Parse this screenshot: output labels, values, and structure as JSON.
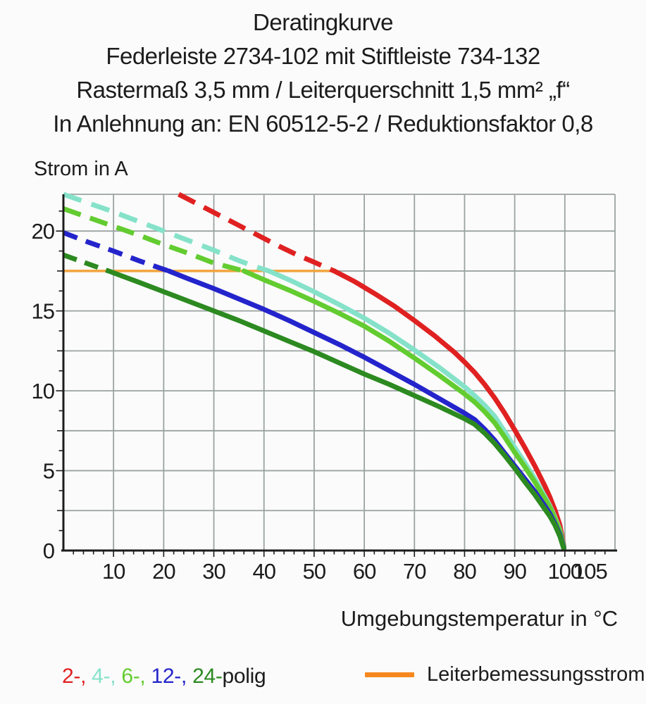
{
  "title": {
    "line1": "Deratingkurve",
    "line2": "Federleiste 2734-102 mit Stiftleiste 734-132",
    "line3": "Rastermaß 3,5 mm / Leiterquerschnitt 1,5 mm² „f“",
    "line4": "In Anlehnung an: EN 60512-5-2 / Reduktionsfaktor 0,8"
  },
  "chart_data": {
    "type": "line",
    "ylabel": "Strom in A",
    "xlabel": "Umgebungstemperatur in °C",
    "xlim": [
      0,
      110
    ],
    "ylim": [
      0,
      22.3
    ],
    "x_gridlines": [
      10,
      20,
      30,
      40,
      50,
      60,
      70,
      80,
      90,
      100
    ],
    "y_gridlines": [
      2.5,
      5,
      7.5,
      10,
      12.5,
      15,
      17.5,
      20
    ],
    "x_tick_labels": [
      10,
      20,
      30,
      40,
      50,
      60,
      70,
      80,
      90,
      100,
      105
    ],
    "y_tick_labels": [
      0,
      5,
      10,
      15,
      20
    ],
    "x_minor_step": 2,
    "y_minor_step": 1.25,
    "grid_color": "#9aa3a1",
    "axis_color": "#1c1c1c",
    "reference_line": {
      "label": "Leiterbemessungsstrom",
      "value": 17.5,
      "x_start": 0,
      "x_end": 54.5,
      "color": "#f2a43c"
    },
    "series": [
      {
        "name": "2-polig",
        "color": "#e02121",
        "dash_pattern": "26 14",
        "dashed_points": [
          [
            23,
            22.3
          ],
          [
            27,
            21.65
          ],
          [
            31,
            21.0
          ],
          [
            35,
            20.35
          ],
          [
            39,
            19.7
          ],
          [
            43,
            19.05
          ],
          [
            47,
            18.45
          ],
          [
            50,
            18.05
          ],
          [
            54,
            17.5
          ]
        ],
        "solid_points": [
          [
            54,
            17.5
          ],
          [
            58,
            16.85
          ],
          [
            62,
            16.1
          ],
          [
            66,
            15.3
          ],
          [
            70,
            14.4
          ],
          [
            74,
            13.45
          ],
          [
            78,
            12.4
          ],
          [
            80,
            11.8
          ],
          [
            82,
            11.15
          ],
          [
            84,
            10.4
          ],
          [
            86,
            9.55
          ],
          [
            88,
            8.6
          ],
          [
            90,
            7.55
          ],
          [
            92,
            6.45
          ],
          [
            94,
            5.3
          ],
          [
            96,
            4.05
          ],
          [
            97,
            3.35
          ],
          [
            98,
            2.55
          ],
          [
            99,
            1.6
          ],
          [
            99.8,
            0.3
          ]
        ]
      },
      {
        "name": "4-polig",
        "color": "#85e2c9",
        "dash_pattern": "27 15",
        "dashed_points": [
          [
            0,
            22.3
          ],
          [
            5,
            21.75
          ],
          [
            10,
            21.2
          ],
          [
            15,
            20.6
          ],
          [
            20,
            20.0
          ],
          [
            25,
            19.4
          ],
          [
            30,
            18.8
          ],
          [
            35,
            18.15
          ],
          [
            38,
            17.8
          ],
          [
            41,
            17.5
          ]
        ],
        "solid_points": [
          [
            41,
            17.5
          ],
          [
            45,
            16.95
          ],
          [
            50,
            16.2
          ],
          [
            55,
            15.4
          ],
          [
            60,
            14.55
          ],
          [
            65,
            13.6
          ],
          [
            70,
            12.55
          ],
          [
            75,
            11.45
          ],
          [
            80,
            10.25
          ],
          [
            82,
            9.7
          ],
          [
            84,
            9.1
          ],
          [
            86,
            8.4
          ],
          [
            88,
            7.45
          ],
          [
            90,
            6.45
          ],
          [
            92,
            5.5
          ],
          [
            94,
            4.5
          ],
          [
            96,
            3.4
          ],
          [
            97,
            2.8
          ],
          [
            98,
            2.1
          ],
          [
            99,
            1.3
          ],
          [
            99.8,
            0.25
          ]
        ]
      },
      {
        "name": "6-polig",
        "color": "#63cc30",
        "dash_pattern": "26 14",
        "dashed_points": [
          [
            0,
            21.4
          ],
          [
            5,
            20.85
          ],
          [
            10,
            20.3
          ],
          [
            15,
            19.75
          ],
          [
            20,
            19.15
          ],
          [
            25,
            18.6
          ],
          [
            30,
            18.0
          ],
          [
            33,
            17.75
          ],
          [
            36,
            17.5
          ]
        ],
        "solid_points": [
          [
            36,
            17.5
          ],
          [
            40,
            16.95
          ],
          [
            45,
            16.3
          ],
          [
            50,
            15.6
          ],
          [
            55,
            14.85
          ],
          [
            60,
            14.05
          ],
          [
            65,
            13.1
          ],
          [
            70,
            12.05
          ],
          [
            75,
            10.95
          ],
          [
            80,
            9.8
          ],
          [
            82,
            9.3
          ],
          [
            84,
            8.7
          ],
          [
            86,
            8.0
          ],
          [
            88,
            7.1
          ],
          [
            90,
            6.15
          ],
          [
            92,
            5.25
          ],
          [
            94,
            4.3
          ],
          [
            96,
            3.25
          ],
          [
            97,
            2.7
          ],
          [
            98,
            2.0
          ],
          [
            99,
            1.25
          ],
          [
            99.8,
            0.2
          ]
        ]
      },
      {
        "name": "12-polig",
        "color": "#2424cc",
        "dash_pattern": "21 13",
        "dashed_points": [
          [
            0,
            19.9
          ],
          [
            5,
            19.3
          ],
          [
            10,
            18.75
          ],
          [
            15,
            18.15
          ],
          [
            20,
            17.6
          ],
          [
            21,
            17.5
          ]
        ],
        "solid_points": [
          [
            21,
            17.5
          ],
          [
            25,
            17.0
          ],
          [
            30,
            16.4
          ],
          [
            35,
            15.75
          ],
          [
            40,
            15.1
          ],
          [
            45,
            14.4
          ],
          [
            50,
            13.65
          ],
          [
            55,
            12.9
          ],
          [
            60,
            12.1
          ],
          [
            65,
            11.25
          ],
          [
            70,
            10.4
          ],
          [
            75,
            9.5
          ],
          [
            80,
            8.6
          ],
          [
            82,
            8.2
          ],
          [
            84,
            7.6
          ],
          [
            86,
            6.9
          ],
          [
            88,
            6.1
          ],
          [
            90,
            5.3
          ],
          [
            92,
            4.5
          ],
          [
            94,
            3.7
          ],
          [
            96,
            2.8
          ],
          [
            97,
            2.3
          ],
          [
            98,
            1.7
          ],
          [
            99,
            1.0
          ],
          [
            99.8,
            0.15
          ]
        ]
      },
      {
        "name": "24-polig",
        "color": "#2c8a20",
        "dash_pattern": "20 12",
        "dashed_points": [
          [
            0,
            18.5
          ],
          [
            4,
            18.05
          ],
          [
            8,
            17.6
          ],
          [
            9,
            17.5
          ]
        ],
        "solid_points": [
          [
            9,
            17.5
          ],
          [
            12,
            17.15
          ],
          [
            15,
            16.8
          ],
          [
            20,
            16.2
          ],
          [
            25,
            15.6
          ],
          [
            30,
            15.0
          ],
          [
            35,
            14.4
          ],
          [
            40,
            13.75
          ],
          [
            45,
            13.1
          ],
          [
            50,
            12.45
          ],
          [
            55,
            11.75
          ],
          [
            60,
            11.05
          ],
          [
            65,
            10.4
          ],
          [
            70,
            9.7
          ],
          [
            75,
            9.0
          ],
          [
            80,
            8.25
          ],
          [
            82,
            7.9
          ],
          [
            84,
            7.35
          ],
          [
            86,
            6.7
          ],
          [
            88,
            5.95
          ],
          [
            90,
            5.15
          ],
          [
            92,
            4.3
          ],
          [
            94,
            3.5
          ],
          [
            96,
            2.6
          ],
          [
            97,
            2.15
          ],
          [
            98,
            1.6
          ],
          [
            99,
            0.9
          ],
          [
            99.8,
            0.1
          ]
        ]
      }
    ]
  },
  "legend": {
    "poles": {
      "items": [
        {
          "label": "2-,",
          "color": "#e02121"
        },
        {
          "label": "4-,",
          "color": "#85e2c9"
        },
        {
          "label": "6-,",
          "color": "#63cc30"
        },
        {
          "label": "12-,",
          "color": "#2424cc"
        },
        {
          "label": "24-",
          "color": "#2c8a20"
        }
      ],
      "suffix": "polig",
      "suffix_color": "#1c1c1c"
    },
    "reference": {
      "label": "Leiterbemessungsstrom",
      "color": "#f6881f"
    }
  }
}
